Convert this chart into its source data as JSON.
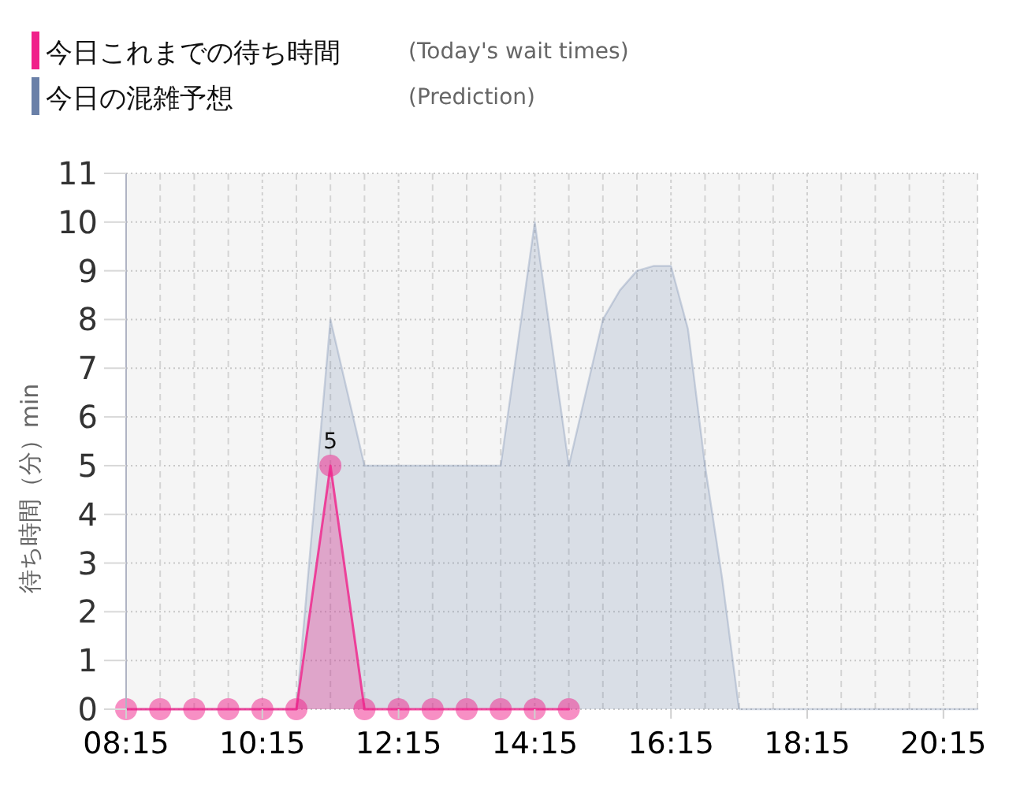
{
  "chart_data": {
    "type": "area",
    "ylabel": "待ち時間（分）min",
    "annotations": [
      "(Today's wait times)",
      "(Prediction)"
    ],
    "xlim": [
      8.25,
      20.75
    ],
    "xticks": [
      {
        "value": 8.25,
        "label": "08:15"
      },
      {
        "value": 8.75,
        "label": null
      },
      {
        "value": 9.25,
        "label": null
      },
      {
        "value": 9.75,
        "label": null
      },
      {
        "value": 10.25,
        "label": "10:15"
      },
      {
        "value": 10.75,
        "label": null
      },
      {
        "value": 11.25,
        "label": null
      },
      {
        "value": 11.75,
        "label": null
      },
      {
        "value": 12.25,
        "label": "12:15"
      },
      {
        "value": 12.75,
        "label": null
      },
      {
        "value": 13.25,
        "label": null
      },
      {
        "value": 13.75,
        "label": null
      },
      {
        "value": 14.25,
        "label": "14:15"
      },
      {
        "value": 14.75,
        "label": null
      },
      {
        "value": 15.25,
        "label": null
      },
      {
        "value": 15.75,
        "label": null
      },
      {
        "value": 16.25,
        "label": "16:15"
      },
      {
        "value": 16.75,
        "label": null
      },
      {
        "value": 17.25,
        "label": null
      },
      {
        "value": 17.75,
        "label": null
      },
      {
        "value": 18.25,
        "label": "18:15"
      },
      {
        "value": 18.75,
        "label": null
      },
      {
        "value": 19.25,
        "label": null
      },
      {
        "value": 19.75,
        "label": null
      },
      {
        "value": 20.25,
        "label": "20:15"
      },
      {
        "value": 20.75,
        "label": null
      }
    ],
    "ylim": [
      0,
      11
    ],
    "yticks": [
      0,
      1,
      2,
      3,
      4,
      5,
      6,
      7,
      8,
      9,
      10,
      11
    ],
    "grid": true,
    "legend": "top left",
    "series": [
      {
        "name": "今日これまでの待ち時間",
        "color": "#f0208a",
        "marker": "circle",
        "x": [
          8.25,
          8.75,
          9.25,
          9.75,
          10.25,
          10.75,
          11.25,
          11.75,
          12.25,
          12.75,
          13.25,
          13.75,
          14.25,
          14.75
        ],
        "values": [
          0,
          0,
          0,
          0,
          0,
          0,
          5,
          0,
          0,
          0,
          0,
          0,
          0,
          0
        ],
        "value_labels": [
          null,
          null,
          null,
          null,
          null,
          null,
          "5",
          null,
          null,
          null,
          null,
          null,
          null,
          null
        ]
      },
      {
        "name": "今日の混雑予想",
        "color": "#6a80a8",
        "x": [
          8.25,
          8.75,
          9.25,
          9.75,
          10.25,
          10.75,
          11.25,
          11.75,
          12.25,
          12.75,
          13.25,
          13.75,
          14.25,
          14.75,
          15.25,
          15.5,
          15.75,
          16.0,
          16.25,
          16.5,
          16.75,
          17.0,
          17.25,
          17.75,
          18.25,
          18.75,
          19.25,
          19.75,
          20.25,
          20.75
        ],
        "values": [
          0,
          0,
          0,
          0,
          0,
          0,
          8,
          5,
          5,
          5,
          5,
          5,
          10,
          5,
          8,
          8.6,
          9,
          9.1,
          9.1,
          7.8,
          5,
          2.7,
          0,
          0,
          0,
          0,
          0,
          0,
          0,
          0
        ]
      }
    ]
  }
}
